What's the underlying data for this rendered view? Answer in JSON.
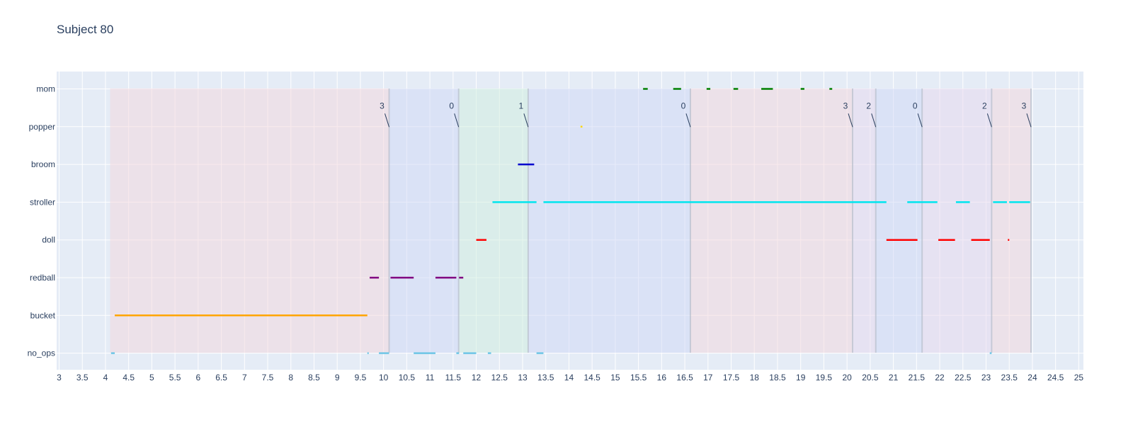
{
  "chart_data": {
    "type": "timeline",
    "title": "Subject 80",
    "xlim": [
      3,
      25
    ],
    "x_ticks": [
      3,
      3.5,
      4,
      4.5,
      5,
      5.5,
      6,
      6.5,
      7,
      7.5,
      8,
      8.5,
      9,
      9.5,
      10,
      10.5,
      11,
      11.5,
      12,
      12.5,
      13,
      13.5,
      14,
      14.5,
      15,
      15.5,
      16,
      16.5,
      17,
      17.5,
      18,
      18.5,
      19,
      19.5,
      20,
      20.5,
      21,
      21.5,
      22,
      22.5,
      23,
      23.5,
      24,
      24.5,
      25
    ],
    "categories": [
      "mom",
      "popper",
      "broom",
      "stroller",
      "doll",
      "redball",
      "bucket",
      "no_ops"
    ],
    "series": [
      {
        "category": "mom",
        "color": "#008000",
        "segments": [
          [
            15.6,
            15.7
          ],
          [
            16.25,
            16.42
          ],
          [
            16.97,
            17.05
          ],
          [
            17.55,
            17.65
          ],
          [
            18.15,
            18.4
          ],
          [
            19.0,
            19.08
          ],
          [
            19.62,
            19.68
          ]
        ]
      },
      {
        "category": "popper",
        "color": "#ffd700",
        "segments": [
          [
            14.25,
            14.29
          ]
        ]
      },
      {
        "category": "broom",
        "color": "#0000cd",
        "segments": [
          [
            12.9,
            13.25
          ]
        ]
      },
      {
        "category": "stroller",
        "color": "#00e5ee",
        "segments": [
          [
            12.35,
            13.3
          ],
          [
            13.45,
            20.85
          ],
          [
            21.3,
            21.95
          ],
          [
            22.35,
            22.65
          ],
          [
            23.15,
            23.45
          ],
          [
            23.5,
            23.95
          ]
        ]
      },
      {
        "category": "doll",
        "color": "#ff0000",
        "segments": [
          [
            12.0,
            12.22
          ],
          [
            20.85,
            21.52
          ],
          [
            21.97,
            22.33
          ],
          [
            22.68,
            23.08
          ],
          [
            23.47,
            23.5
          ]
        ]
      },
      {
        "category": "redball",
        "color": "#800080",
        "segments": [
          [
            9.7,
            9.9
          ],
          [
            10.15,
            10.65
          ],
          [
            11.12,
            11.57
          ],
          [
            11.63,
            11.72
          ]
        ]
      },
      {
        "category": "bucket",
        "color": "#ffa500",
        "segments": [
          [
            4.2,
            9.65
          ]
        ]
      },
      {
        "category": "no_ops",
        "color": "#6ec6e6",
        "segments": [
          [
            4.12,
            4.2
          ],
          [
            9.65,
            9.68
          ],
          [
            9.9,
            10.12
          ],
          [
            10.65,
            11.12
          ],
          [
            11.57,
            11.63
          ],
          [
            11.72,
            12.0
          ],
          [
            12.25,
            12.32
          ],
          [
            13.3,
            13.45
          ],
          [
            23.08,
            23.12
          ]
        ]
      }
    ],
    "regions": [
      {
        "start": 4.1,
        "end": 10.12,
        "color": "#f4d6dc",
        "label": "3"
      },
      {
        "start": 10.12,
        "end": 11.62,
        "color": "#cfd8f5",
        "label": "0"
      },
      {
        "start": 11.62,
        "end": 13.12,
        "color": "#cfeedd",
        "label": "1"
      },
      {
        "start": 13.12,
        "end": 16.62,
        "color": "#cfd8f5",
        "label": "0"
      },
      {
        "start": 16.62,
        "end": 20.12,
        "color": "#f4d6dc",
        "label": "3"
      },
      {
        "start": 20.12,
        "end": 20.62,
        "color": "#e8d8ee",
        "label": "2"
      },
      {
        "start": 20.62,
        "end": 21.62,
        "color": "#cfd8f5",
        "label": "0"
      },
      {
        "start": 21.62,
        "end": 23.12,
        "color": "#e8d8ee",
        "label": "2"
      },
      {
        "start": 23.12,
        "end": 23.97,
        "color": "#f4d6dc",
        "label": "3"
      }
    ],
    "colors": {
      "plot_bg": "#e5ecf6",
      "grid": "#ffffff",
      "text": "#2a3f5f",
      "divider": "#b8bfcc"
    }
  }
}
